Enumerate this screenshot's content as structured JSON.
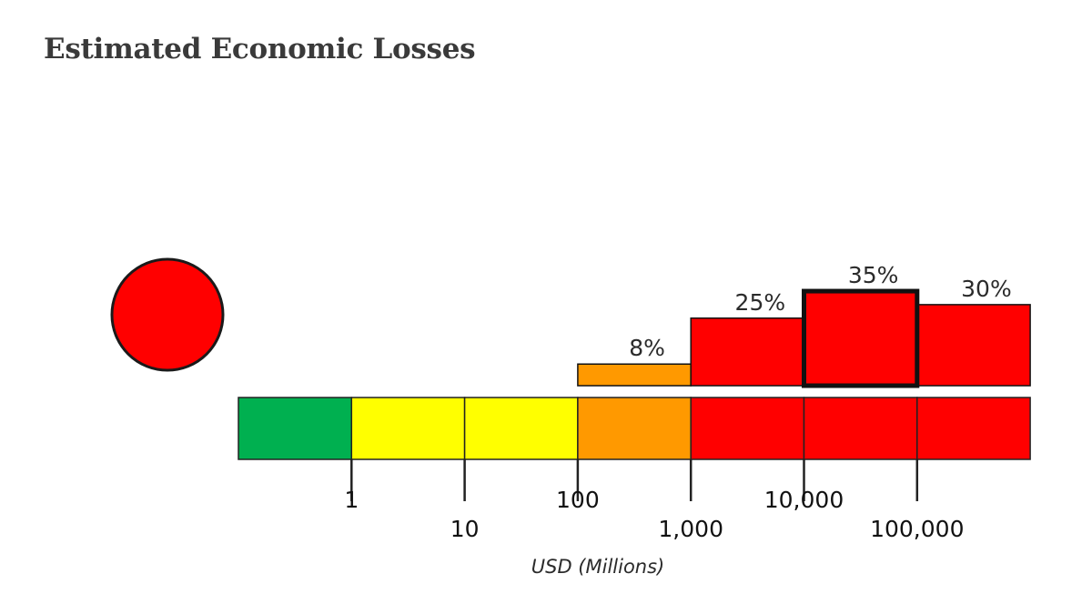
{
  "title": "Estimated Economic Losses",
  "alert_indicator": {
    "color": "#ff0000"
  },
  "chart_data": {
    "type": "bar",
    "scale": "log",
    "xlabel": "USD (Millions)",
    "tick_labels": [
      "1",
      "10",
      "100",
      "1,000",
      "10,000",
      "100,000"
    ],
    "tick_values": [
      1,
      10,
      100,
      1000,
      10000,
      100000
    ],
    "bins": [
      {
        "lo": 0.1,
        "hi": 1,
        "color": "#00b050"
      },
      {
        "lo": 1,
        "hi": 10,
        "color": "#ffff00"
      },
      {
        "lo": 10,
        "hi": 100,
        "color": "#ffff00"
      },
      {
        "lo": 100,
        "hi": 1000,
        "color": "#ff9900"
      },
      {
        "lo": 1000,
        "hi": 10000,
        "color": "#ff0000"
      },
      {
        "lo": 10000,
        "hi": 100000,
        "color": "#ff0000"
      },
      {
        "lo": 100000,
        "hi": 1000000,
        "color": "#ff0000"
      }
    ],
    "probabilities": [
      {
        "lo": 100,
        "hi": 1000,
        "value": 8,
        "label": "8%",
        "color": "#ff9900",
        "highlight": false
      },
      {
        "lo": 1000,
        "hi": 10000,
        "value": 25,
        "label": "25%",
        "color": "#ff0000",
        "highlight": false
      },
      {
        "lo": 10000,
        "hi": 100000,
        "value": 35,
        "label": "35%",
        "color": "#ff0000",
        "highlight": true
      },
      {
        "lo": 100000,
        "hi": 1000000,
        "value": 30,
        "label": "30%",
        "color": "#ff0000",
        "highlight": false
      }
    ]
  }
}
